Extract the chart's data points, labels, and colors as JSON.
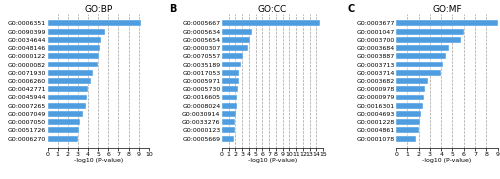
{
  "panels": [
    {
      "title": "GO:BP",
      "label": "A",
      "categories": [
        "G0:0006351",
        "G0:0090399",
        "G0:0034644",
        "G0:0048146",
        "G0:0000122",
        "G0:0000082",
        "G0:0071930",
        "G0:0006260",
        "G0:0042771",
        "G0:0045944",
        "G0:0007265",
        "G0:0007049",
        "G0:0007050",
        "G0:0051726",
        "G0:0006270"
      ],
      "values": [
        9.2,
        5.7,
        5.3,
        5.2,
        5.1,
        5.0,
        4.5,
        4.3,
        4.0,
        3.9,
        3.8,
        3.5,
        3.2,
        3.1,
        3.0
      ],
      "xlim": [
        0,
        10
      ],
      "xticks": [
        0,
        1,
        2,
        3,
        4,
        5,
        6,
        7,
        8,
        9,
        10
      ]
    },
    {
      "title": "GO:CC",
      "label": "B",
      "categories": [
        "G0:0005667",
        "G0:0005634",
        "G0:0005654",
        "G0:0000307",
        "G0:0070557",
        "G0:0035189",
        "G0:0017053",
        "G0:0005971",
        "G0:0005730",
        "G0:0016605",
        "G0:0008024",
        "G0:0030914",
        "G0:0033276",
        "G0:0000123",
        "G0:0005669"
      ],
      "values": [
        14.5,
        4.5,
        4.2,
        3.8,
        3.2,
        2.9,
        2.6,
        2.5,
        2.4,
        2.3,
        2.2,
        2.1,
        2.0,
        1.9,
        1.8
      ],
      "xlim": [
        0,
        15
      ],
      "xticks": [
        0,
        1,
        2,
        3,
        4,
        5,
        6,
        7,
        8,
        9,
        10,
        11,
        12,
        13,
        14,
        15
      ]
    },
    {
      "title": "GO:MF",
      "label": "C",
      "categories": [
        "G0:0003677",
        "G0:0001047",
        "G0:0003700",
        "G0:0003684",
        "G0:0003887",
        "G0:0003713",
        "G0:0003714",
        "G0:0003682",
        "G0:0000978",
        "G0:0000979",
        "G0:0016301",
        "G0:0004693",
        "G0:0001228",
        "G0:0004861",
        "G0:0001078"
      ],
      "values": [
        9.0,
        6.0,
        5.8,
        4.7,
        4.4,
        4.2,
        4.0,
        2.8,
        2.6,
        2.5,
        2.4,
        2.2,
        2.1,
        2.0,
        1.8
      ],
      "xlim": [
        0,
        9
      ],
      "xticks": [
        0,
        1,
        2,
        3,
        4,
        5,
        6,
        7,
        8,
        9
      ]
    }
  ],
  "bar_color": "#4d9de0",
  "xlabel": "-log10 (P-value)",
  "figsize": [
    5.0,
    1.79
  ],
  "dpi": 100,
  "label_fontsize": 4.5,
  "tick_fontsize": 4.5,
  "title_fontsize": 6.5,
  "panel_label_fontsize": 7.0
}
